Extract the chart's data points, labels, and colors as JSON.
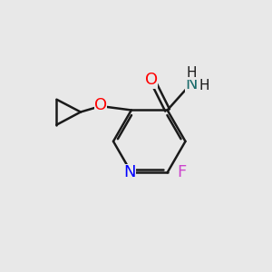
{
  "bg_color": "#e8e8e8",
  "bond_color": "#1a1a1a",
  "bond_width": 1.8,
  "atom_colors": {
    "O": "#ff0000",
    "N_ring": "#0000ff",
    "N_amide": "#1a6b6b",
    "F": "#cc44cc",
    "C": "#1a1a1a",
    "H": "#1a1a1a"
  },
  "font_size_atoms": 13,
  "font_size_h": 11
}
